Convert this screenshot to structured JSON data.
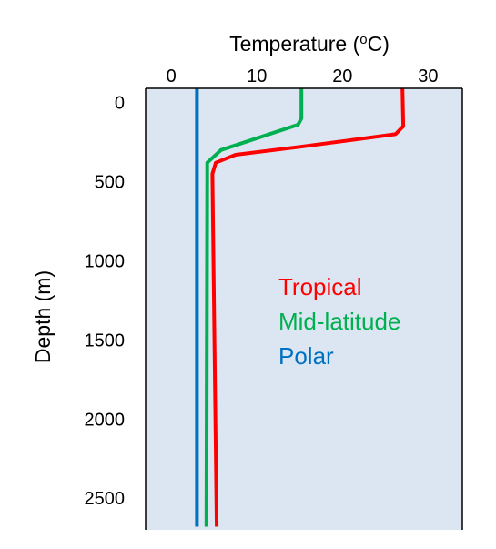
{
  "chart_data": {
    "type": "line",
    "title": "",
    "xlabel": "Temperature (",
    "xlabel_sup": "o",
    "xlabel_unit": "C)",
    "ylabel": "Depth (m)",
    "x_axis_position": "top",
    "y_inverted": true,
    "xlim": [
      -3,
      34
    ],
    "ylim": [
      -90,
      2700
    ],
    "xticks": [
      0,
      10,
      20,
      30
    ],
    "yticks": [
      0,
      500,
      1000,
      1500,
      2000,
      2500
    ],
    "grid": false,
    "plot_background": "#dce6f2",
    "legend_position": "center-right",
    "series": [
      {
        "name": "Tropical",
        "color": "#ff0000",
        "points": [
          [
            27,
            -90
          ],
          [
            27.1,
            150
          ],
          [
            26.2,
            200
          ],
          [
            15,
            280
          ],
          [
            7.5,
            330
          ],
          [
            5.2,
            380
          ],
          [
            4.8,
            450
          ],
          [
            5.3,
            2680
          ]
        ]
      },
      {
        "name": "Mid-latitude",
        "color": "#00b050",
        "points": [
          [
            15.2,
            -90
          ],
          [
            15.2,
            0
          ],
          [
            15.2,
            100
          ],
          [
            14.8,
            140
          ],
          [
            5.8,
            300
          ],
          [
            4.2,
            380
          ],
          [
            4.2,
            450
          ],
          [
            4.1,
            2680
          ]
        ]
      },
      {
        "name": "Polar",
        "color": "#0070c0",
        "points": [
          [
            3,
            -90
          ],
          [
            3,
            2680
          ]
        ]
      }
    ]
  }
}
